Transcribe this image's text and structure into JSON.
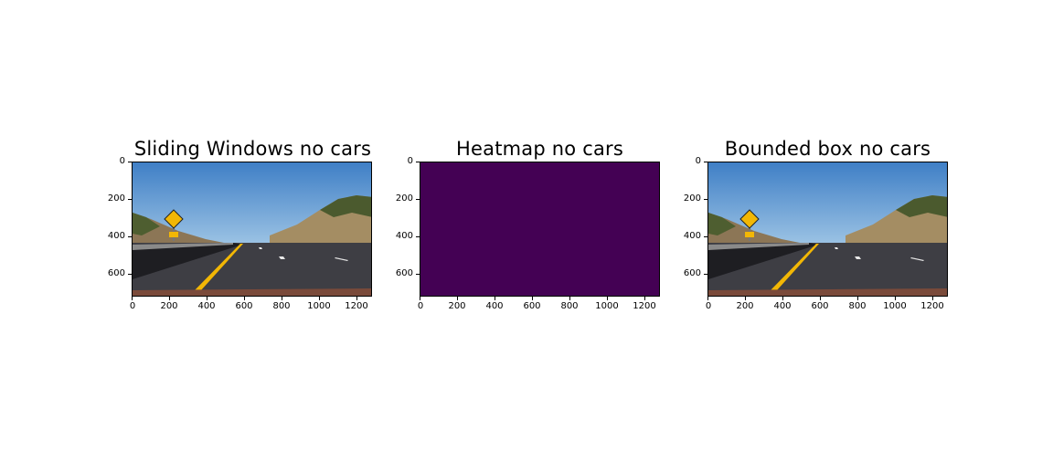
{
  "panels": [
    {
      "title": "Sliding Windows no cars",
      "kind": "road-image",
      "x_ticks": [
        "0",
        "200",
        "400",
        "600",
        "800",
        "1000",
        "1200"
      ],
      "y_ticks": [
        "0",
        "200",
        "400",
        "600"
      ]
    },
    {
      "title": "Heatmap no cars",
      "kind": "heatmap",
      "fill_color": "#440154",
      "x_ticks": [
        "0",
        "200",
        "400",
        "600",
        "800",
        "1000",
        "1200"
      ],
      "y_ticks": [
        "0",
        "200",
        "400",
        "600"
      ]
    },
    {
      "title": "Bounded box no cars",
      "kind": "road-image",
      "x_ticks": [
        "0",
        "200",
        "400",
        "600",
        "800",
        "1000",
        "1200"
      ],
      "y_ticks": [
        "0",
        "200",
        "400",
        "600"
      ]
    }
  ],
  "axes": {
    "x_range": [
      0,
      1280
    ],
    "y_range": [
      0,
      720
    ]
  }
}
